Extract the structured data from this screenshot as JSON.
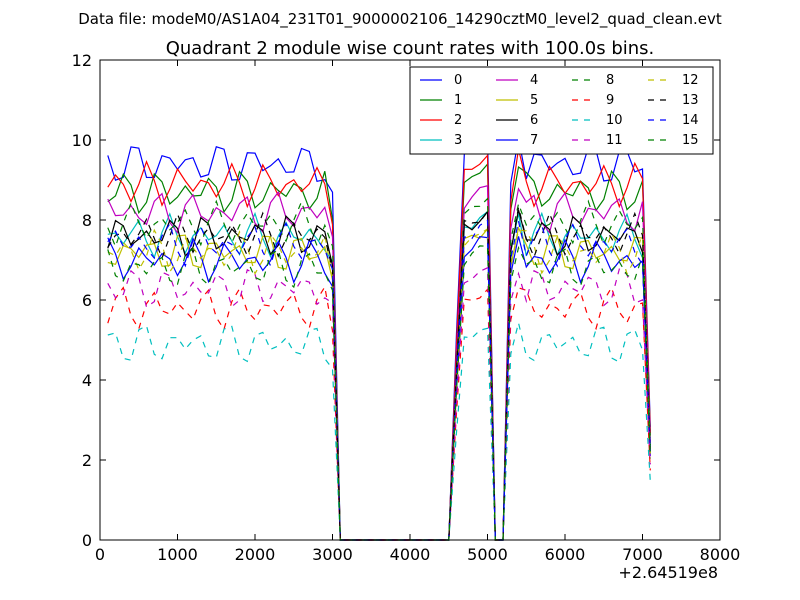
{
  "figure": {
    "suptitle": "Data file: modeM0/AS1A04_231T01_9000002106_14290cztM0_level2_quad_clean.evt",
    "title": "Quadrant 2 module wise count rates with 100.0s bins.",
    "offset_label": "+2.64519e8"
  },
  "chart_data": {
    "type": "line",
    "title": "Quadrant 2 module wise count rates with 100.0s bins.",
    "xlabel": "",
    "ylabel": "",
    "x_offset": 264519000,
    "xlim": [
      0,
      8000
    ],
    "ylim": [
      0,
      12
    ],
    "x_ticks": [
      0,
      1000,
      2000,
      3000,
      4000,
      5000,
      6000,
      7000,
      8000
    ],
    "y_ticks": [
      0,
      2,
      4,
      6,
      8,
      10,
      12
    ],
    "grid": false,
    "legend": {
      "placement": "top-right",
      "columns": 4
    },
    "x": [
      100,
      200,
      300,
      400,
      500,
      600,
      700,
      800,
      900,
      1000,
      1100,
      1200,
      1300,
      1400,
      1500,
      1600,
      1700,
      1800,
      1900,
      2000,
      2100,
      2200,
      2300,
      2400,
      2500,
      2600,
      2700,
      2800,
      2900,
      3000,
      3100,
      3200,
      3300,
      3400,
      3500,
      3600,
      3700,
      3800,
      3900,
      4000,
      4100,
      4200,
      4300,
      4400,
      4500,
      4600,
      4700,
      4800,
      4900,
      5000,
      5100,
      5200,
      5300,
      5400,
      5500,
      5600,
      5700,
      5800,
      5900,
      6000,
      6100,
      6200,
      6300,
      6400,
      6500,
      6600,
      6700,
      6800,
      6900,
      7000,
      7100
    ],
    "gap_profile": [
      0.8,
      0.82,
      0.84,
      0.86,
      0.91,
      0.96
    ],
    "series": [
      {
        "name": "0",
        "color": "#0000ff",
        "dash": "solid",
        "base": 9.4
      },
      {
        "name": "1",
        "color": "#008000",
        "dash": "solid",
        "base": 8.7
      },
      {
        "name": "2",
        "color": "#ff0000",
        "dash": "solid",
        "base": 8.9
      },
      {
        "name": "3",
        "color": "#00bfbf",
        "dash": "solid",
        "base": 7.6
      },
      {
        "name": "4",
        "color": "#bf00bf",
        "dash": "solid",
        "base": 8.2
      },
      {
        "name": "5",
        "color": "#bfbf00",
        "dash": "solid",
        "base": 7.2
      },
      {
        "name": "6",
        "color": "#000000",
        "dash": "solid",
        "base": 7.6
      },
      {
        "name": "7",
        "color": "#0000ff",
        "dash": "solid",
        "base": 7.0
      },
      {
        "name": "8",
        "color": "#008000",
        "dash": "dashed",
        "base": 7.9
      },
      {
        "name": "9",
        "color": "#ff0000",
        "dash": "dashed",
        "base": 5.8
      },
      {
        "name": "10",
        "color": "#00bfbf",
        "dash": "dashed",
        "base": 4.9
      },
      {
        "name": "11",
        "color": "#bf00bf",
        "dash": "dashed",
        "base": 6.3
      },
      {
        "name": "12",
        "color": "#bfbf00",
        "dash": "dashed",
        "base": 7.2
      },
      {
        "name": "13",
        "color": "#000000",
        "dash": "dashed",
        "base": 7.6
      },
      {
        "name": "14",
        "color": "#0000ff",
        "dash": "dashed",
        "base": 7.4
      },
      {
        "name": "15",
        "color": "#008000",
        "dash": "dashed",
        "base": 6.8
      }
    ]
  }
}
